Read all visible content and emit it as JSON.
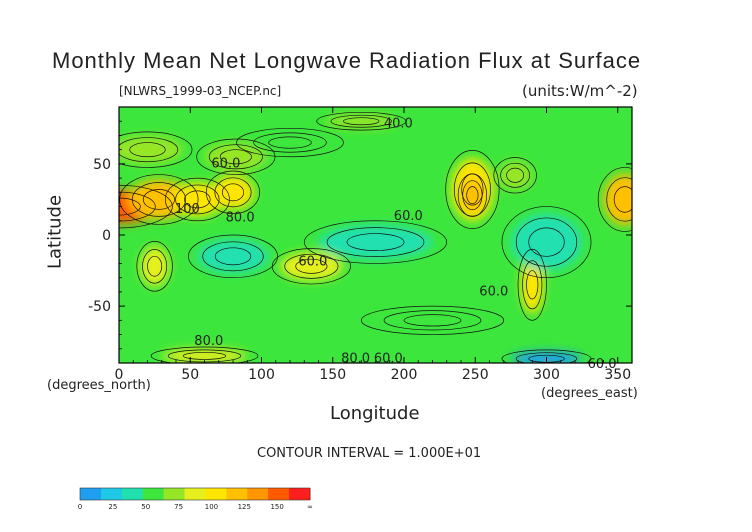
{
  "chart_data": {
    "type": "heatmap",
    "title": "Monthly Mean Net Longwave Radiation Flux at Surface",
    "file_label": "[NLWRS_1999-03_NCEP.nc]",
    "units_label": "(units:W/m^-2)",
    "xlabel": "Longitude",
    "ylabel": "Latitude",
    "x_unit_label": "(degrees_east)",
    "y_unit_label": "(degrees_north)",
    "xlim": [
      0,
      360
    ],
    "ylim": [
      -90,
      90
    ],
    "x_ticks": [
      "0",
      "50",
      "100",
      "150",
      "200",
      "250",
      "300",
      "350"
    ],
    "x_tick_values": [
      0,
      50,
      100,
      150,
      200,
      250,
      300,
      350
    ],
    "y_ticks": [
      "50",
      "0",
      "-50"
    ],
    "y_tick_values": [
      50,
      0,
      -50
    ],
    "contour_interval_label": "CONTOUR INTERVAL = 1.000E+01",
    "contour_labels": [
      {
        "text": "40.0",
        "lon": 196,
        "lat": 79
      },
      {
        "text": "60.0",
        "lon": 75,
        "lat": 51
      },
      {
        "text": "100",
        "lon": 48,
        "lat": 19
      },
      {
        "text": "80.0",
        "lon": 85,
        "lat": 13
      },
      {
        "text": "60.0",
        "lon": 203,
        "lat": 14
      },
      {
        "text": "60.0",
        "lon": 136,
        "lat": -18
      },
      {
        "text": "60.0",
        "lon": 263,
        "lat": -39
      },
      {
        "text": "80.0",
        "lon": 63,
        "lat": -74
      },
      {
        "text": "80.0",
        "lon": 166,
        "lat": -86
      },
      {
        "text": "60.0",
        "lon": 189,
        "lat": -86
      },
      {
        "text": "60.0",
        "lon": 339,
        "lat": -90
      }
    ],
    "colorbar": {
      "labels": [
        "0",
        "25",
        "50",
        "75",
        "100",
        "125",
        "150",
        "∞"
      ],
      "colors": [
        "#1e9ff0",
        "#1ec8e6",
        "#20e0b0",
        "#3ce63c",
        "#96e628",
        "#e6f01e",
        "#ffe600",
        "#ffc000",
        "#ff9600",
        "#ff5a00",
        "#ff1e1e"
      ]
    },
    "regions": [
      {
        "lon": 0,
        "lat": 20,
        "rlon": 30,
        "rlat": 12,
        "value": 135
      },
      {
        "lon": 28,
        "lat": 25,
        "rlon": 22,
        "rlat": 14,
        "value": 115
      },
      {
        "lon": 55,
        "lat": 25,
        "rlon": 18,
        "rlat": 12,
        "value": 100
      },
      {
        "lon": 80,
        "lat": 30,
        "rlon": 15,
        "rlat": 12,
        "value": 105
      },
      {
        "lon": 82,
        "lat": 55,
        "rlon": 22,
        "rlat": 10,
        "value": 85
      },
      {
        "lon": 20,
        "lat": 60,
        "rlon": 25,
        "rlat": 10,
        "value": 75
      },
      {
        "lon": 120,
        "lat": 65,
        "rlon": 30,
        "rlat": 8,
        "value": 72
      },
      {
        "lon": 248,
        "lat": 32,
        "rlon": 15,
        "rlat": 22,
        "value": 100
      },
      {
        "lon": 248,
        "lat": 28,
        "rlon": 8,
        "rlat": 12,
        "value": 118
      },
      {
        "lon": 278,
        "lat": 42,
        "rlon": 12,
        "rlat": 10,
        "value": 88
      },
      {
        "lon": 355,
        "lat": 25,
        "rlon": 15,
        "rlat": 18,
        "value": 110
      },
      {
        "lon": 25,
        "lat": -22,
        "rlon": 10,
        "rlat": 14,
        "value": 95
      },
      {
        "lon": 135,
        "lat": -22,
        "rlon": 22,
        "rlat": 10,
        "value": 95
      },
      {
        "lon": 290,
        "lat": -35,
        "rlon": 8,
        "rlat": 20,
        "value": 100
      },
      {
        "lon": 300,
        "lat": -5,
        "rlon": 25,
        "rlat": 20,
        "value": 42
      },
      {
        "lon": 180,
        "lat": -5,
        "rlon": 40,
        "rlat": 12,
        "value": 42
      },
      {
        "lon": 80,
        "lat": -15,
        "rlon": 25,
        "rlat": 12,
        "value": 45
      },
      {
        "lon": 220,
        "lat": -60,
        "rlon": 40,
        "rlat": 8,
        "value": 65
      },
      {
        "lon": 60,
        "lat": -85,
        "rlon": 30,
        "rlat": 5,
        "value": 95
      },
      {
        "lon": 300,
        "lat": -87,
        "rlon": 25,
        "rlat": 5,
        "value": 20
      },
      {
        "lon": 170,
        "lat": 80,
        "rlon": 25,
        "rlat": 5,
        "value": 85
      }
    ]
  }
}
